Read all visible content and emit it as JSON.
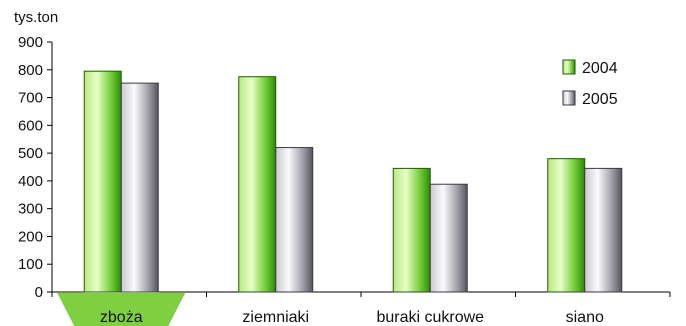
{
  "chart_data": {
    "type": "bar",
    "title": "",
    "ylabel": "tys.ton",
    "xlabel": "",
    "categories": [
      "zboża",
      "ziemniaki",
      "buraki cukrowe",
      "siano"
    ],
    "series": [
      {
        "name": "2004",
        "values": [
          795,
          775,
          445,
          480
        ]
      },
      {
        "name": "2005",
        "values": [
          752,
          520,
          388,
          445
        ]
      }
    ],
    "ylim": [
      0,
      900
    ],
    "yticks": [
      "0",
      "100",
      "200",
      "300",
      "400",
      "500",
      "600",
      "700",
      "800",
      "900"
    ],
    "grid": false,
    "legend_position": "top-right",
    "colors": {
      "series_2004_light": "#c8f090",
      "series_2004_dark": "#3aa010",
      "series_2005_light": "#f2f2f4",
      "series_2005_dark": "#5a5a64",
      "highlight_category": "#7fd040"
    },
    "highlighted_category": "zboża"
  }
}
